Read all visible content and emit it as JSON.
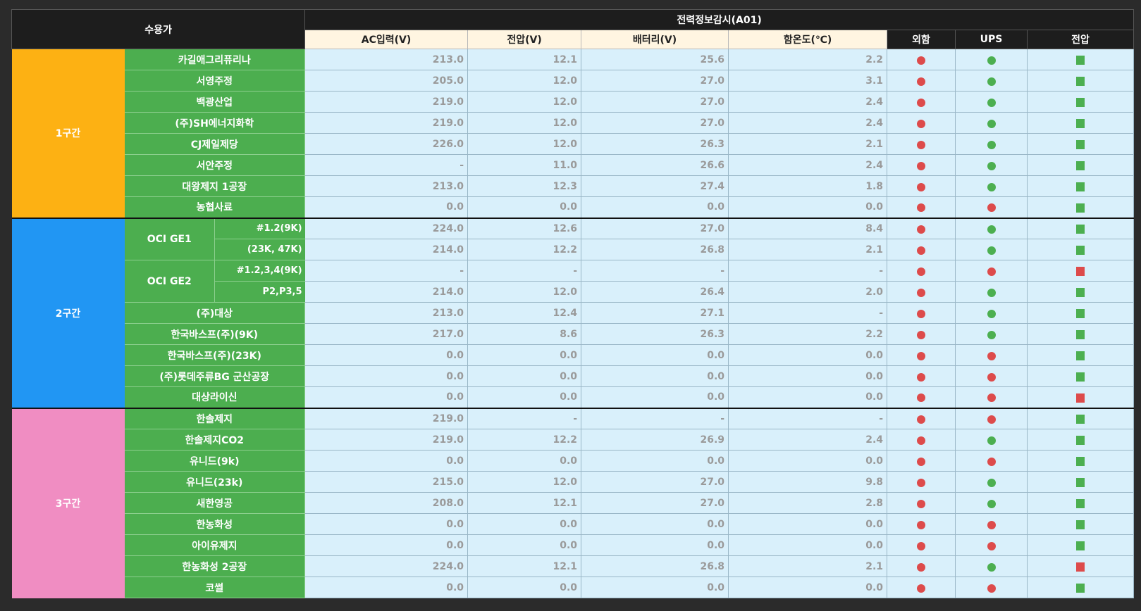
{
  "header": {
    "customer": "수용가",
    "panel_title": "전력정보감시(A01)",
    "columns": [
      "AC입력(V)",
      "전압(V)",
      "배터리(V)",
      "함온도(℃)",
      "외함",
      "UPS",
      "전압"
    ]
  },
  "colors": {
    "zone1": "#fdb113",
    "zone2": "#2196f3",
    "zone3": "#f08dc2",
    "ok": "#4caf50",
    "alarm": "#dd4b4b"
  },
  "zones": [
    {
      "label": "1구간",
      "color": "#fdb113",
      "rows": [
        {
          "name": "카길애그리퓨리나",
          "ac": "213.0",
          "v": "12.1",
          "bat": "25.6",
          "temp": "2.2",
          "case": "red",
          "ups": "green",
          "volt": "green"
        },
        {
          "name": "서영주정",
          "ac": "205.0",
          "v": "12.0",
          "bat": "27.0",
          "temp": "3.1",
          "case": "red",
          "ups": "green",
          "volt": "green"
        },
        {
          "name": "백광산업",
          "ac": "219.0",
          "v": "12.0",
          "bat": "27.0",
          "temp": "2.4",
          "case": "red",
          "ups": "green",
          "volt": "green"
        },
        {
          "name": "(주)SH에너지화학",
          "ac": "219.0",
          "v": "12.0",
          "bat": "27.0",
          "temp": "2.4",
          "case": "red",
          "ups": "green",
          "volt": "green"
        },
        {
          "name": "CJ제일제당",
          "ac": "226.0",
          "v": "12.0",
          "bat": "26.3",
          "temp": "2.1",
          "case": "red",
          "ups": "green",
          "volt": "green"
        },
        {
          "name": "서안주정",
          "ac": "-",
          "v": "11.0",
          "bat": "26.6",
          "temp": "2.4",
          "case": "red",
          "ups": "green",
          "volt": "green"
        },
        {
          "name": "대왕제지 1공장",
          "ac": "213.0",
          "v": "12.3",
          "bat": "27.4",
          "temp": "1.8",
          "case": "red",
          "ups": "green",
          "volt": "green"
        },
        {
          "name": "농협사료",
          "ac": "0.0",
          "v": "0.0",
          "bat": "0.0",
          "temp": "0.0",
          "case": "red",
          "ups": "red",
          "volt": "green"
        }
      ]
    },
    {
      "label": "2구간",
      "color": "#2196f3",
      "rows": [
        {
          "group": "OCI GE1",
          "sub": "#1.2(9K)",
          "ac": "224.0",
          "v": "12.6",
          "bat": "27.0",
          "temp": "8.4",
          "case": "red",
          "ups": "green",
          "volt": "green"
        },
        {
          "group": "OCI GE1",
          "sub": "(23K, 47K)",
          "ac": "214.0",
          "v": "12.2",
          "bat": "26.8",
          "temp": "2.1",
          "case": "red",
          "ups": "green",
          "volt": "green"
        },
        {
          "group": "OCI GE2",
          "sub": "#1.2,3,4(9K)",
          "ac": "-",
          "v": "-",
          "bat": "-",
          "temp": "-",
          "case": "red",
          "ups": "red",
          "volt": "red"
        },
        {
          "group": "OCI GE2",
          "sub": "P2,P3,5",
          "ac": "214.0",
          "v": "12.0",
          "bat": "26.4",
          "temp": "2.0",
          "case": "red",
          "ups": "green",
          "volt": "green"
        },
        {
          "name": "(주)대상",
          "ac": "213.0",
          "v": "12.4",
          "bat": "27.1",
          "temp": "-",
          "case": "red",
          "ups": "green",
          "volt": "green"
        },
        {
          "name": "한국바스프(주)(9K)",
          "ac": "217.0",
          "v": "8.6",
          "bat": "26.3",
          "temp": "2.2",
          "case": "red",
          "ups": "green",
          "volt": "green"
        },
        {
          "name": "한국바스프(주)(23K)",
          "ac": "0.0",
          "v": "0.0",
          "bat": "0.0",
          "temp": "0.0",
          "case": "red",
          "ups": "red",
          "volt": "green"
        },
        {
          "name": "(주)롯데주류BG 군산공장",
          "ac": "0.0",
          "v": "0.0",
          "bat": "0.0",
          "temp": "0.0",
          "case": "red",
          "ups": "red",
          "volt": "green"
        },
        {
          "name": "대상라이신",
          "ac": "0.0",
          "v": "0.0",
          "bat": "0.0",
          "temp": "0.0",
          "case": "red",
          "ups": "red",
          "volt": "red"
        }
      ]
    },
    {
      "label": "3구간",
      "color": "#f08dc2",
      "rows": [
        {
          "name": "한솔제지",
          "ac": "219.0",
          "v": "-",
          "bat": "-",
          "temp": "-",
          "case": "red",
          "ups": "red",
          "volt": "green"
        },
        {
          "name": "한솔제지CO2",
          "ac": "219.0",
          "v": "12.2",
          "bat": "26.9",
          "temp": "2.4",
          "case": "red",
          "ups": "green",
          "volt": "green"
        },
        {
          "name": "유니드(9k)",
          "ac": "0.0",
          "v": "0.0",
          "bat": "0.0",
          "temp": "0.0",
          "case": "red",
          "ups": "red",
          "volt": "green"
        },
        {
          "name": "유니드(23k)",
          "ac": "215.0",
          "v": "12.0",
          "bat": "27.0",
          "temp": "9.8",
          "case": "red",
          "ups": "green",
          "volt": "green"
        },
        {
          "name": "새한영공",
          "ac": "208.0",
          "v": "12.1",
          "bat": "27.0",
          "temp": "2.8",
          "case": "red",
          "ups": "green",
          "volt": "green"
        },
        {
          "name": "한농화성",
          "ac": "0.0",
          "v": "0.0",
          "bat": "0.0",
          "temp": "0.0",
          "case": "red",
          "ups": "red",
          "volt": "green"
        },
        {
          "name": "아이유제지",
          "ac": "0.0",
          "v": "0.0",
          "bat": "0.0",
          "temp": "0.0",
          "case": "red",
          "ups": "red",
          "volt": "green"
        },
        {
          "name": "한농화성 2공장",
          "ac": "224.0",
          "v": "12.1",
          "bat": "26.8",
          "temp": "2.1",
          "case": "red",
          "ups": "green",
          "volt": "red"
        },
        {
          "name": "코썰",
          "ac": "0.0",
          "v": "0.0",
          "bat": "0.0",
          "temp": "0.0",
          "case": "red",
          "ups": "red",
          "volt": "green"
        }
      ]
    }
  ]
}
